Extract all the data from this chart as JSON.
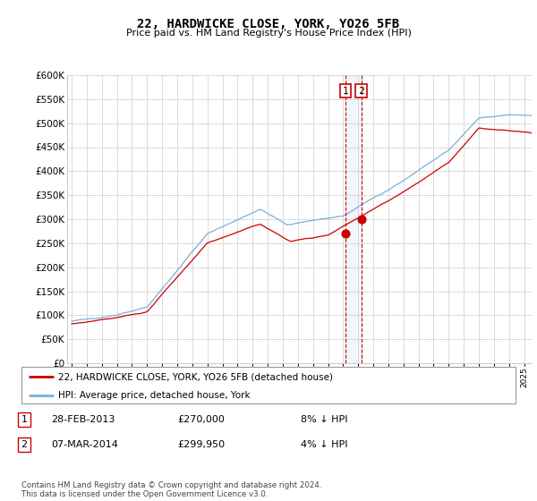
{
  "title": "22, HARDWICKE CLOSE, YORK, YO26 5FB",
  "subtitle": "Price paid vs. HM Land Registry's House Price Index (HPI)",
  "hpi_line_color": "#7ab0d4",
  "price_line_color": "#cc0000",
  "ylim": [
    0,
    600000
  ],
  "yticks": [
    0,
    50000,
    100000,
    150000,
    200000,
    250000,
    300000,
    350000,
    400000,
    450000,
    500000,
    550000,
    600000
  ],
  "legend_label_red": "22, HARDWICKE CLOSE, YORK, YO26 5FB (detached house)",
  "legend_label_blue": "HPI: Average price, detached house, York",
  "annotation1_label": "1",
  "annotation1_date": "28-FEB-2013",
  "annotation1_price": "£270,000",
  "annotation1_hpi": "8% ↓ HPI",
  "annotation2_label": "2",
  "annotation2_date": "07-MAR-2014",
  "annotation2_price": "£299,950",
  "annotation2_hpi": "4% ↓ HPI",
  "footer": "Contains HM Land Registry data © Crown copyright and database right 2024.\nThis data is licensed under the Open Government Licence v3.0.",
  "point1_x": 2013.15,
  "point1_y": 270000,
  "point2_x": 2014.2,
  "point2_y": 299950,
  "xmin": 1994.7,
  "xmax": 2025.5
}
